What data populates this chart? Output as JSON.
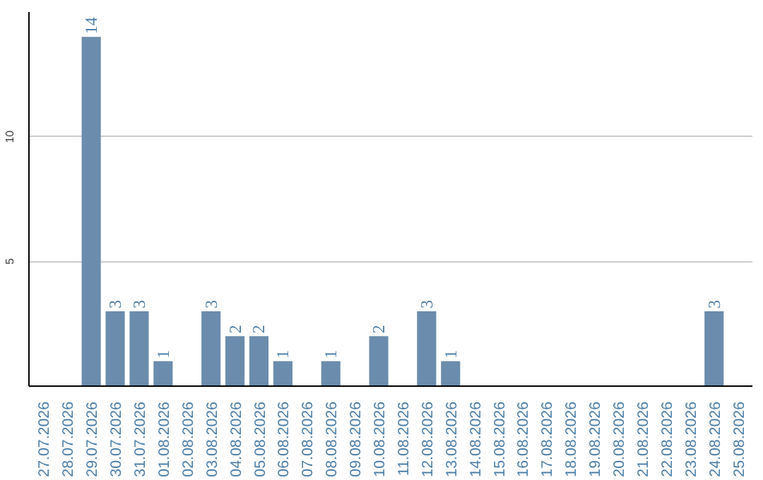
{
  "chart_data": {
    "type": "bar",
    "categories": [
      "27.07.2026",
      "28.07.2026",
      "29.07.2026",
      "30.07.2026",
      "31.07.2026",
      "01.08.2026",
      "02.08.2026",
      "03.08.2026",
      "04.08.2026",
      "05.08.2026",
      "06.08.2026",
      "07.08.2026",
      "08.08.2026",
      "09.08.2026",
      "10.08.2026",
      "11.08.2026",
      "12.08.2026",
      "13.08.2026",
      "14.08.2026",
      "15.08.2026",
      "16.08.2026",
      "17.08.2026",
      "18.08.2026",
      "19.08.2026",
      "20.08.2026",
      "21.08.2026",
      "22.08.2026",
      "23.08.2026",
      "24.08.2026",
      "25.08.2026"
    ],
    "values": [
      0,
      0,
      14,
      3,
      3,
      1,
      0,
      3,
      2,
      2,
      1,
      0,
      1,
      0,
      2,
      0,
      3,
      1,
      0,
      0,
      0,
      0,
      0,
      0,
      0,
      0,
      0,
      0,
      3,
      0
    ],
    "value_labels": [
      null,
      null,
      "14",
      "3",
      "3",
      "1",
      null,
      "3",
      "2",
      "2",
      "1",
      null,
      "1",
      null,
      "2",
      null,
      "3",
      "1",
      null,
      null,
      null,
      null,
      null,
      null,
      null,
      null,
      null,
      null,
      "3",
      null
    ],
    "color": "#6b8cad",
    "ylim": [
      0,
      15
    ],
    "yticks": [
      5,
      10
    ],
    "grid": "y"
  }
}
